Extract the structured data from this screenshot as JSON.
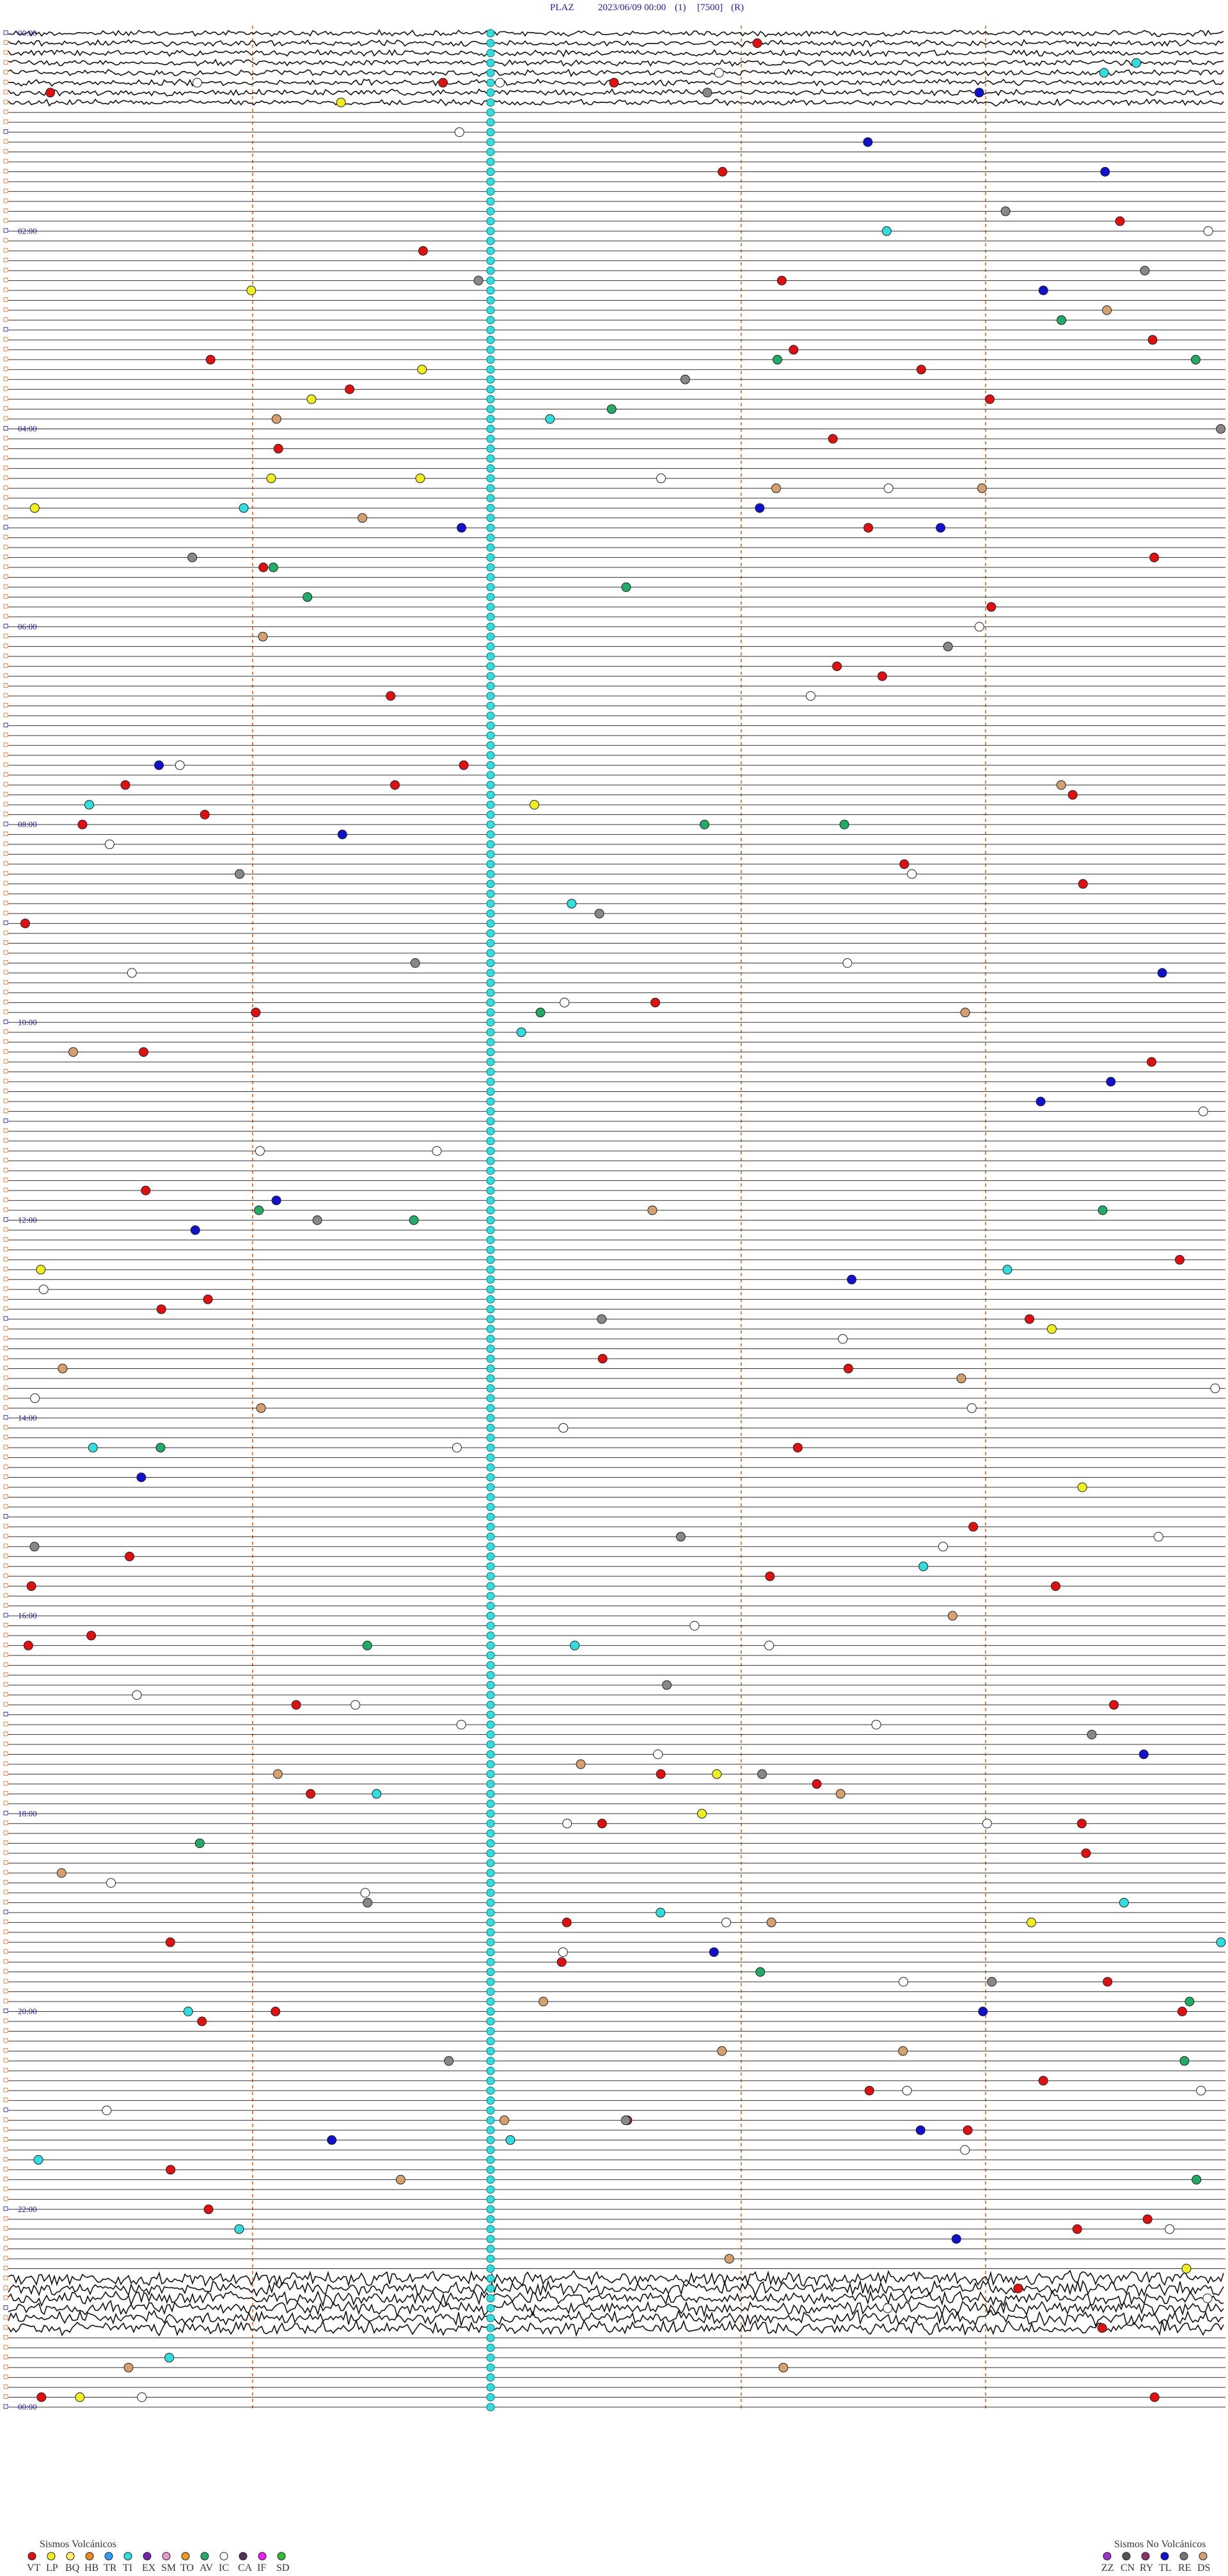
{
  "header": {
    "station": "PLAZ",
    "datetime": "2023/06/09 00:00",
    "channel": "(1)",
    "scale": "[7500]",
    "mode": "(R)"
  },
  "time_labels": [
    "00:00",
    "02:00",
    "04:00",
    "06:00",
    "08:00",
    "10:00",
    "12:00",
    "14:00",
    "16:00",
    "18:00",
    "20:00",
    "22:00",
    "00:00"
  ],
  "legend": {
    "volcanic": {
      "title": "Sismos Volcánicos",
      "codes": [
        "VT",
        "LP",
        "BQ",
        "HB",
        "TR",
        "TI",
        "EX",
        "SM",
        "TO",
        "AV",
        "IC",
        "CA",
        "IF",
        "SD"
      ]
    },
    "non_volcanic": {
      "title": "Sismos No Volcánicos",
      "codes": [
        "ZZ",
        "CN",
        "RY",
        "TL",
        "RE",
        "DS"
      ]
    }
  }
}
